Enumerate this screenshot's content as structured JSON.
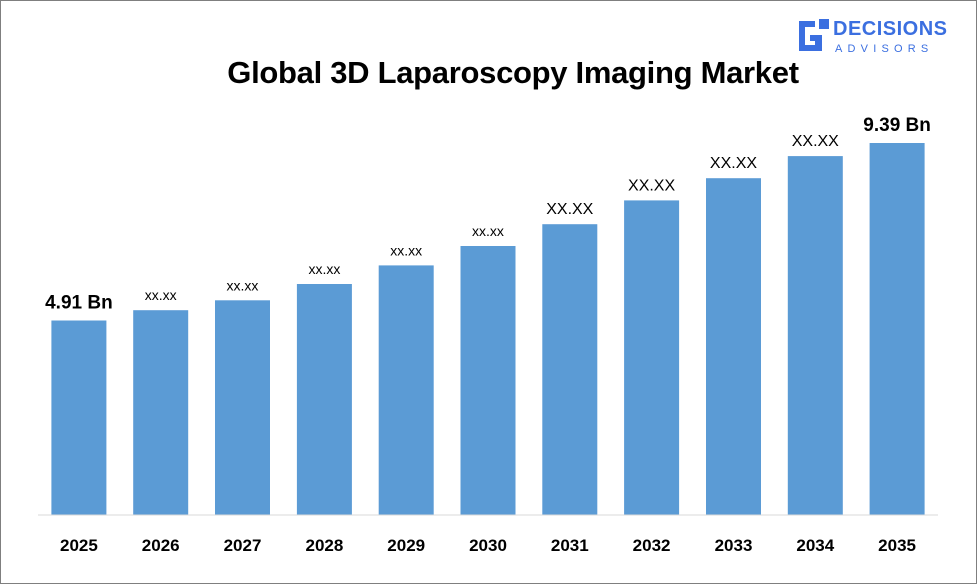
{
  "logo": {
    "line1": "DECISIONS",
    "line2": "ADVISORS",
    "color": "#3b6fe0"
  },
  "chart_data": {
    "type": "bar",
    "title": "Global 3D Laparoscopy Imaging Market",
    "xlabel": "",
    "ylabel": "",
    "categories": [
      "2025",
      "2026",
      "2027",
      "2028",
      "2029",
      "2030",
      "2031",
      "2032",
      "2033",
      "2034",
      "2035"
    ],
    "values": [
      4.91,
      5.17,
      5.42,
      5.83,
      6.3,
      6.79,
      7.34,
      7.94,
      8.5,
      9.06,
      9.39
    ],
    "data_labels": [
      "4.91 Bn",
      "xx.xx",
      "xx.xx",
      "xx.xx",
      "xx.xx",
      "xx.xx",
      "XX.XX",
      "XX.XX",
      "XX.XX",
      "XX.XX",
      "9.39 Bn"
    ],
    "bar_color": "#5b9bd5",
    "ylim": [
      0,
      10.5
    ],
    "grid": false,
    "legend": "none"
  }
}
